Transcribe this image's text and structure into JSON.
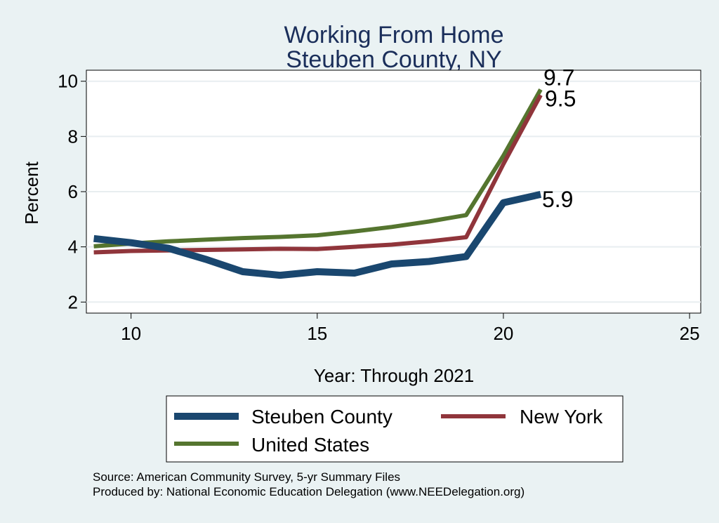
{
  "chart_data": {
    "type": "line",
    "title": [
      "Working From Home",
      "Steuben County, NY"
    ],
    "xlabel": "Year: Through 2021",
    "ylabel": "Percent",
    "xlim": [
      8.8,
      25.3
    ],
    "ylim": [
      1.6,
      10.4
    ],
    "xticks": [
      10,
      15,
      20,
      25
    ],
    "yticks": [
      2,
      4,
      6,
      8,
      10
    ],
    "grid": true,
    "legend_position": "bottom",
    "series": [
      {
        "name": "Steuben County",
        "color": "#1a476f",
        "x": [
          9,
          10,
          11,
          12,
          13,
          14,
          15,
          16,
          17,
          18,
          19,
          20,
          21
        ],
        "y": [
          4.3,
          4.15,
          3.95,
          3.55,
          3.1,
          2.97,
          3.1,
          3.05,
          3.38,
          3.47,
          3.65,
          5.6,
          5.9
        ],
        "end_label": "5.9"
      },
      {
        "name": "New York",
        "color": "#90353b",
        "x": [
          9,
          10,
          11,
          12,
          13,
          14,
          15,
          16,
          17,
          18,
          19,
          20,
          21
        ],
        "y": [
          3.8,
          3.85,
          3.87,
          3.89,
          3.91,
          3.93,
          3.92,
          4.0,
          4.08,
          4.2,
          4.35,
          7.0,
          9.5
        ],
        "end_label": "9.5"
      },
      {
        "name": "United States",
        "color": "#55752f",
        "x": [
          9,
          10,
          11,
          12,
          13,
          14,
          15,
          16,
          17,
          18,
          19,
          20,
          21
        ],
        "y": [
          4.02,
          4.12,
          4.2,
          4.26,
          4.32,
          4.36,
          4.42,
          4.56,
          4.72,
          4.92,
          5.15,
          7.3,
          9.7
        ],
        "end_label": "9.7"
      }
    ],
    "notes": [
      "Source: American Community Survey, 5-yr Summary Files",
      "Produced by: National Economic Education Delegation (www.NEEDelegation.org)"
    ]
  }
}
